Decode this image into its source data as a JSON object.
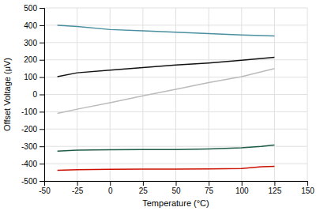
{
  "chart_data": {
    "type": "line",
    "xlabel": "Temperature (°C)",
    "ylabel": "Offset Voltage (μV)",
    "xlim": [
      -50,
      150
    ],
    "ylim": [
      -500,
      500
    ],
    "xticks": [
      -50,
      -25,
      0,
      25,
      50,
      75,
      100,
      125,
      150
    ],
    "yticks": [
      -500,
      -400,
      -300,
      -200,
      -100,
      0,
      100,
      200,
      300,
      400,
      500
    ],
    "grid": true,
    "series": [
      {
        "color": "#4A8FA0",
        "x": [
          -40,
          -25,
          0,
          25,
          50,
          75,
          100,
          125
        ],
        "values": [
          400,
          393,
          375,
          368,
          360,
          352,
          344,
          338
        ]
      },
      {
        "color": "#111111",
        "x": [
          -40,
          -25,
          0,
          25,
          50,
          75,
          100,
          125
        ],
        "values": [
          103,
          125,
          140,
          155,
          170,
          182,
          198,
          215
        ]
      },
      {
        "color": "#BBBBBB",
        "x": [
          -40,
          -25,
          0,
          25,
          50,
          75,
          100,
          125
        ],
        "values": [
          -110,
          -85,
          -48,
          -8,
          30,
          68,
          103,
          150
        ]
      },
      {
        "color": "#1E5C47",
        "x": [
          -40,
          -25,
          0,
          25,
          50,
          75,
          100,
          115,
          125
        ],
        "values": [
          -328,
          -322,
          -320,
          -319,
          -318,
          -315,
          -308,
          -300,
          -292
        ]
      },
      {
        "color": "#CC1100",
        "x": [
          -40,
          -25,
          0,
          25,
          50,
          75,
          100,
          115,
          125
        ],
        "values": [
          -438,
          -435,
          -433,
          -432,
          -431,
          -430,
          -428,
          -418,
          -415
        ]
      }
    ]
  }
}
